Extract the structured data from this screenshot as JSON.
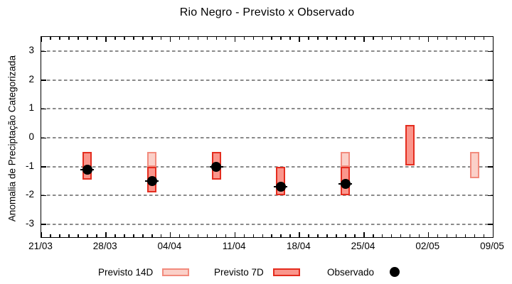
{
  "title": "Rio Negro - Previsto x Observado",
  "axes": {
    "y_label": "Anomalia de Preciptação Categorizada",
    "y_ticks": [
      3,
      2,
      1,
      0,
      -1,
      -2,
      -3
    ],
    "x_ticks": [
      {
        "label": "21/03",
        "day": 0
      },
      {
        "label": "28/03",
        "day": 7
      },
      {
        "label": "04/04",
        "day": 14
      },
      {
        "label": "11/04",
        "day": 21
      },
      {
        "label": "18/04",
        "day": 28
      },
      {
        "label": "25/04",
        "day": 35
      },
      {
        "label": "02/05",
        "day": 42
      },
      {
        "label": "09/05",
        "day": 49
      }
    ],
    "x_minor_tick_every_days": 1,
    "x_range_days": 49,
    "grid": "horizontal-dashed"
  },
  "legend": {
    "items": [
      {
        "label": "Previsto 14D",
        "swatch": "light-pink-box"
      },
      {
        "label": "Previsto 7D",
        "swatch": "red-box"
      },
      {
        "label": "Observado",
        "swatch": "black-dot"
      }
    ],
    "position": "bottom-center"
  },
  "colors": {
    "previsto_14d_fill": "#fbd0c8",
    "previsto_14d_border": "#f28b7d",
    "previsto_7d_fill": "#fa968c",
    "previsto_7d_border": "#e42d1f",
    "observado": "#000000",
    "grid": "#8a8a8a",
    "axis": "#000000",
    "background": "#ffffff"
  },
  "chart_data": {
    "type": "bar",
    "subtype": "floating-range-boxes-with-observed-points",
    "title": "Rio Negro - Previsto x Observado",
    "xlabel": "",
    "ylabel": "Anomalia de Preciptação Categorizada",
    "ylim": [
      -3.5,
      3.5
    ],
    "x_tick_labels": [
      "21/03",
      "28/03",
      "04/04",
      "11/04",
      "18/04",
      "25/04",
      "02/05",
      "09/05"
    ],
    "grid": "horizontal-dashed",
    "legend_position": "bottom-center",
    "series": [
      {
        "name": "Previsto 14D",
        "kind": "range",
        "points": [
          {
            "date": "02/04",
            "day": 12,
            "low": -1.0,
            "high": -0.5
          },
          {
            "date": "23/04",
            "day": 33,
            "low": -1.0,
            "high": -0.5
          },
          {
            "date": "07/05",
            "day": 47,
            "low": -1.4,
            "high": -0.5
          }
        ]
      },
      {
        "name": "Previsto 7D",
        "kind": "range",
        "points": [
          {
            "date": "26/03",
            "day": 5,
            "low": -1.45,
            "high": -0.5
          },
          {
            "date": "02/04",
            "day": 12,
            "low": -1.9,
            "high": -1.0
          },
          {
            "date": "09/04",
            "day": 19,
            "low": -1.45,
            "high": -0.5
          },
          {
            "date": "16/04",
            "day": 26,
            "low": -2.0,
            "high": -1.0
          },
          {
            "date": "23/04",
            "day": 33,
            "low": -2.0,
            "high": -1.0
          },
          {
            "date": "30/04",
            "day": 40,
            "low": -0.95,
            "high": 0.45
          }
        ]
      },
      {
        "name": "Observado",
        "kind": "point",
        "points": [
          {
            "date": "26/03",
            "day": 5,
            "value": -1.1
          },
          {
            "date": "02/04",
            "day": 12,
            "value": -1.5
          },
          {
            "date": "09/04",
            "day": 19,
            "value": -1.0
          },
          {
            "date": "16/04",
            "day": 26,
            "value": -1.7
          },
          {
            "date": "23/04",
            "day": 33,
            "value": -1.6
          }
        ]
      }
    ]
  }
}
